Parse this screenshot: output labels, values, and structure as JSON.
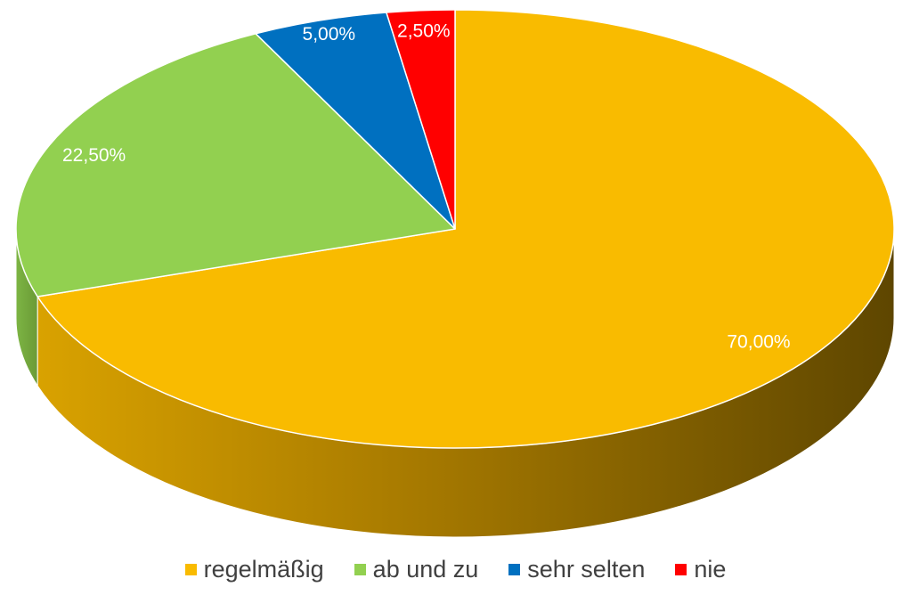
{
  "chart_data": {
    "type": "pie",
    "style": "3d",
    "categories": [
      "regelmäßig",
      "ab und zu",
      "sehr selten",
      "nie"
    ],
    "values": [
      70.0,
      22.5,
      5.0,
      2.5
    ],
    "data_labels": [
      "70,00%",
      "22,50%",
      "5,00%",
      "2,50%"
    ],
    "colors": [
      "#F9BB00",
      "#92D050",
      "#0070C0",
      "#FF0000"
    ],
    "side_colors": [
      "#B07F00",
      "#6B9E2E",
      "#004E87",
      "#B00000"
    ],
    "legend_placement": "bottom",
    "start_angle": "12 o'clock",
    "direction": "clockwise"
  },
  "legend": {
    "items": [
      {
        "label": "regelmäßig",
        "color": "#F9BB00"
      },
      {
        "label": "ab und zu",
        "color": "#92D050"
      },
      {
        "label": "sehr selten",
        "color": "#0070C0"
      },
      {
        "label": "nie",
        "color": "#FF0000"
      }
    ]
  }
}
